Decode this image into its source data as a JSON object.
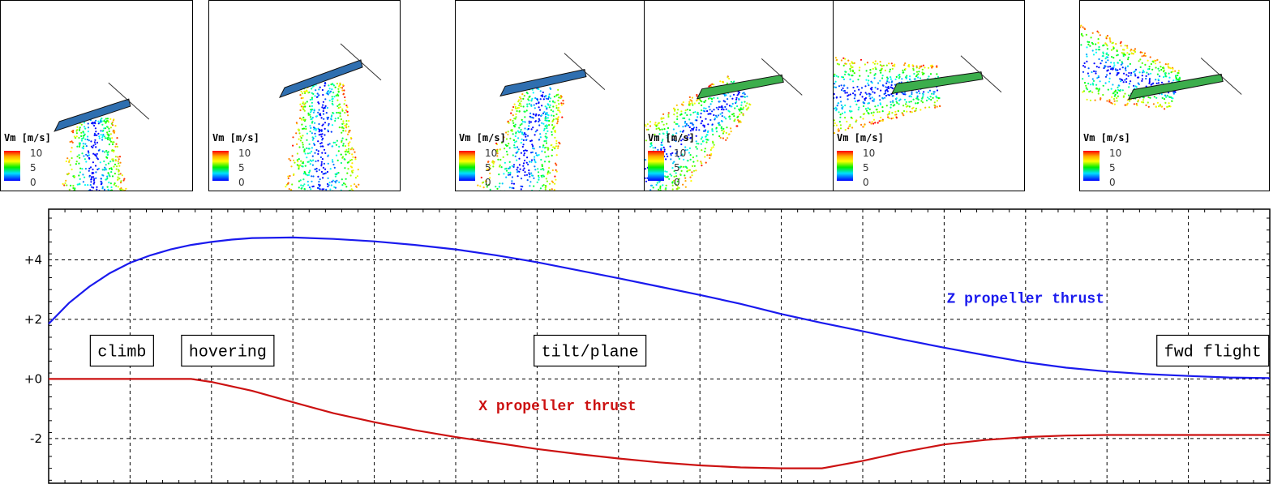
{
  "panels": [
    {
      "legend_title": "Vm [m/s]",
      "ticks": [
        "10",
        "5",
        "0"
      ]
    },
    {
      "legend_title": "Vm [m/s]",
      "ticks": [
        "10",
        "5",
        "0"
      ]
    },
    {
      "legend_title": "Vm [m/s]",
      "ticks": [
        "10",
        "5",
        "0"
      ]
    },
    {
      "legend_title": "Vm [m/s]",
      "ticks": [
        "10",
        "5",
        "0"
      ]
    },
    {
      "legend_title": "Vm [m/s]",
      "ticks": [
        "10",
        "5",
        "0"
      ]
    },
    {
      "legend_title": "Vm [m/s]",
      "ticks": [
        "10",
        "5",
        "0"
      ]
    }
  ],
  "chart_data": {
    "type": "line",
    "title": "",
    "xlabel": "",
    "ylabel": "",
    "xlim": [
      0,
      15
    ],
    "ylim": [
      -3.5,
      5.7
    ],
    "yticks": [
      {
        "value": 4,
        "label": "+4"
      },
      {
        "value": 2,
        "label": "+2"
      },
      {
        "value": 0,
        "label": "+0"
      },
      {
        "value": -2,
        "label": "-2"
      }
    ],
    "grid": true,
    "phases": [
      {
        "label": "climb",
        "x": 0.9
      },
      {
        "label": "hovering",
        "x": 2.2
      },
      {
        "label": "tilt/plane",
        "x": 6.65
      },
      {
        "label": "fwd flight",
        "x": 14.3
      }
    ],
    "series": [
      {
        "name": "Z propeller thrust",
        "color": "#1a1aee",
        "label_pos": [
          12.0,
          2.55
        ],
        "x": [
          0,
          0.25,
          0.5,
          0.75,
          1.0,
          1.25,
          1.5,
          1.75,
          2.0,
          2.25,
          2.5,
          3.0,
          3.5,
          4.0,
          4.5,
          5.0,
          5.5,
          6.0,
          6.5,
          7.0,
          7.5,
          8.0,
          8.5,
          9.0,
          9.5,
          10.0,
          10.5,
          11.0,
          11.5,
          12.0,
          12.5,
          13.0,
          13.5,
          14.0,
          14.5,
          15.0
        ],
        "values": [
          1.85,
          2.55,
          3.1,
          3.55,
          3.9,
          4.15,
          4.35,
          4.5,
          4.6,
          4.68,
          4.73,
          4.75,
          4.7,
          4.62,
          4.5,
          4.35,
          4.15,
          3.92,
          3.65,
          3.38,
          3.1,
          2.82,
          2.52,
          2.18,
          1.88,
          1.6,
          1.32,
          1.05,
          0.8,
          0.56,
          0.38,
          0.25,
          0.16,
          0.1,
          0.05,
          0.03
        ]
      },
      {
        "name": "X propeller thrust",
        "color": "#cc1111",
        "label_pos": [
          6.25,
          -1.05
        ],
        "x": [
          0,
          0.5,
          1.0,
          1.5,
          1.75,
          2.0,
          2.5,
          3.0,
          3.5,
          4.0,
          4.5,
          5.0,
          5.5,
          6.0,
          6.5,
          7.0,
          7.5,
          8.0,
          8.5,
          9.0,
          9.5,
          10.0,
          10.5,
          11.0,
          11.5,
          12.0,
          12.5,
          13.0,
          14.0,
          15.0
        ],
        "values": [
          0,
          0,
          0,
          0,
          0,
          -0.1,
          -0.4,
          -0.78,
          -1.15,
          -1.45,
          -1.72,
          -1.95,
          -2.15,
          -2.35,
          -2.52,
          -2.67,
          -2.8,
          -2.9,
          -2.97,
          -3.0,
          -3.0,
          -2.75,
          -2.45,
          -2.2,
          -2.05,
          -1.95,
          -1.9,
          -1.88,
          -1.88,
          -1.88
        ]
      }
    ]
  }
}
